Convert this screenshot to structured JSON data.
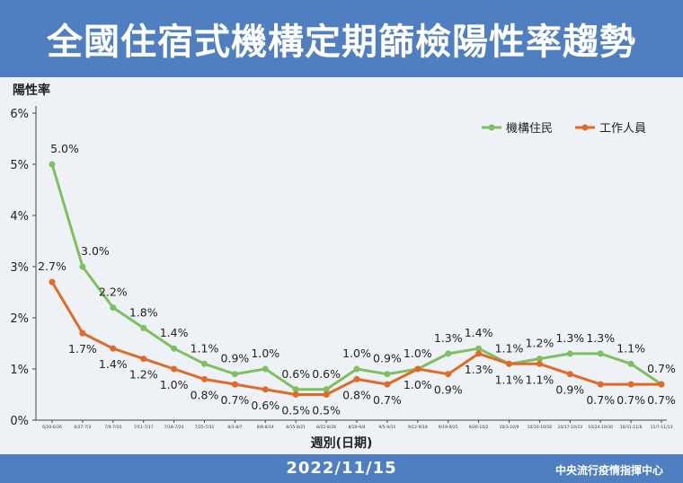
{
  "header": {
    "title": "全國住宿式機構定期篩檢陽性率趨勢"
  },
  "footer": {
    "date": "2022/11/15",
    "org": "中央流行疫情指揮中心"
  },
  "colors": {
    "banner": "#4f7fc0",
    "panel": "#eef1f6",
    "residents": "#7ec060",
    "staff": "#e06a28"
  },
  "chart_data": {
    "type": "line",
    "ylabel": "陽性率",
    "xlabel": "週別(日期)",
    "ylim": [
      0,
      6
    ],
    "yticks": [
      "0%",
      "1%",
      "2%",
      "3%",
      "4%",
      "5%",
      "6%"
    ],
    "legend_position": "top-right",
    "grid": false,
    "categories": [
      "6/20-6/26",
      "6/27-7/3",
      "7/4-7/10",
      "7/11-7/17",
      "7/18-7/24",
      "7/25-7/31",
      "8/1-8/7",
      "8/8-8/14",
      "8/15-8/21",
      "8/22-8/28",
      "8/29-9/4",
      "9/5-9/11",
      "9/12-9/18",
      "9/19-9/25",
      "9/26-10/2",
      "10/3-10/9",
      "10/10-10/16",
      "10/17-10/23",
      "10/24-10/30",
      "10/31-11/6",
      "11/7-11/13"
    ],
    "series": [
      {
        "name": "機構住民",
        "color": "#7ec060",
        "values": [
          5.0,
          3.0,
          2.2,
          1.8,
          1.4,
          1.1,
          0.9,
          1.0,
          0.6,
          0.6,
          1.0,
          0.9,
          1.0,
          1.3,
          1.4,
          1.1,
          1.2,
          1.3,
          1.3,
          1.1,
          0.7
        ],
        "labels": [
          "5.0%",
          "3.0%",
          "2.2%",
          "1.8%",
          "1.4%",
          "1.1%",
          "0.9%",
          "1.0%",
          "0.6%",
          "0.6%",
          "1.0%",
          "0.9%",
          "1.0%",
          "1.3%",
          "1.4%",
          "1.1%",
          "1.2%",
          "1.3%",
          "1.3%",
          "1.1%",
          "0.7%"
        ]
      },
      {
        "name": "工作人員",
        "color": "#e06a28",
        "values": [
          2.7,
          1.7,
          1.4,
          1.2,
          1.0,
          0.8,
          0.7,
          0.6,
          0.5,
          0.5,
          0.8,
          0.7,
          1.0,
          0.9,
          1.3,
          1.1,
          1.1,
          0.9,
          0.7,
          0.7,
          0.7
        ],
        "labels": [
          "2.7%",
          "1.7%",
          "1.4%",
          "1.2%",
          "1.0%",
          "0.8%",
          "0.7%",
          "0.6%",
          "0.5%",
          "0.5%",
          "0.8%",
          "0.7%",
          "1.0%",
          "0.9%",
          "1.3%",
          "1.1%",
          "1.1%",
          "0.9%",
          "0.7%",
          "0.7%",
          "0.7%"
        ]
      }
    ]
  }
}
